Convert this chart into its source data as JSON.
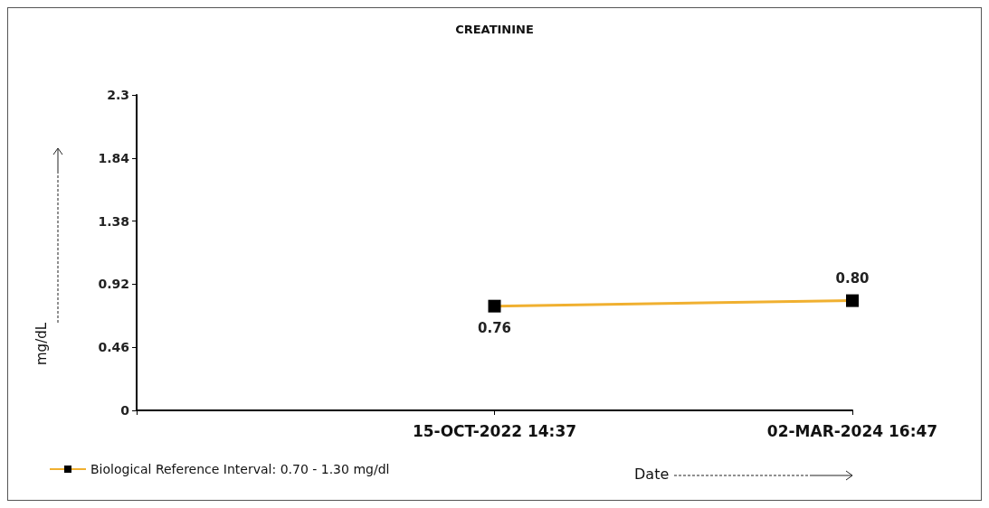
{
  "chart_data": {
    "type": "line",
    "title": "CREATININE",
    "xlabel": "Date",
    "ylabel": "mg/dL",
    "categories": [
      null,
      "15-OCT-2022 14:37",
      "02-MAR-2024 16:47"
    ],
    "series": [
      {
        "name": "Biological Reference Interval: 0.70 - 1.30 mg/dl",
        "color": "#f0b030",
        "values": [
          null,
          0.76,
          0.8
        ],
        "value_labels": [
          null,
          "0.76",
          "0.80"
        ]
      }
    ],
    "ylim": [
      0,
      2.3
    ],
    "yticks": [
      0,
      0.46,
      0.92,
      1.38,
      1.84,
      2.3
    ],
    "grid": false,
    "legend": "bottom left",
    "marker": "square"
  }
}
